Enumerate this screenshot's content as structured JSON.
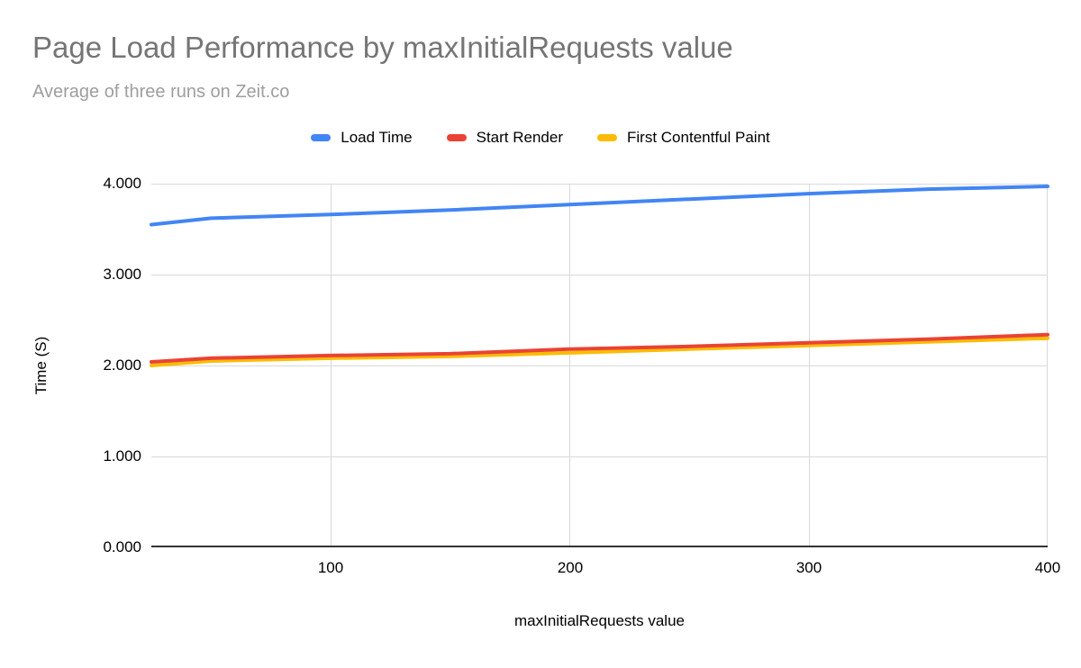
{
  "page": {
    "background": "#ffffff"
  },
  "chart_data": {
    "type": "line",
    "title": "Page Load Performance by maxInitialRequests value",
    "subtitle": "Average of three runs on Zeit.co",
    "xlabel": "maxInitialRequests value",
    "ylabel": "Time (S)",
    "xlim": [
      25,
      400
    ],
    "ylim": [
      0,
      4
    ],
    "x_ticks": [
      100,
      200,
      300,
      400
    ],
    "x_tick_labels": [
      "100",
      "200",
      "300",
      "400"
    ],
    "y_ticks_top_to_bottom": [
      4,
      3,
      2,
      1,
      0
    ],
    "y_tick_labels": [
      "4.000",
      "3.000",
      "2.000",
      "1.000",
      "0.000"
    ],
    "grid": true,
    "legend_position": "top",
    "title_color": "#757575",
    "subtitle_color": "#9e9e9e",
    "grid_color": "#d9d9d9",
    "axis_line_color": "#333333",
    "x": [
      25,
      50,
      100,
      150,
      200,
      250,
      300,
      350,
      400
    ],
    "series": [
      {
        "name": "Load Time",
        "color": "#4285f4",
        "values": [
          3.55,
          3.62,
          3.66,
          3.71,
          3.77,
          3.83,
          3.89,
          3.94,
          3.97
        ]
      },
      {
        "name": "Start Render",
        "color": "#ea4335",
        "values": [
          2.04,
          2.08,
          2.11,
          2.13,
          2.18,
          2.21,
          2.25,
          2.29,
          2.34
        ]
      },
      {
        "name": "First Contentful Paint",
        "color": "#fbbc04",
        "values": [
          2.0,
          2.05,
          2.08,
          2.1,
          2.14,
          2.18,
          2.22,
          2.26,
          2.3
        ]
      }
    ]
  }
}
